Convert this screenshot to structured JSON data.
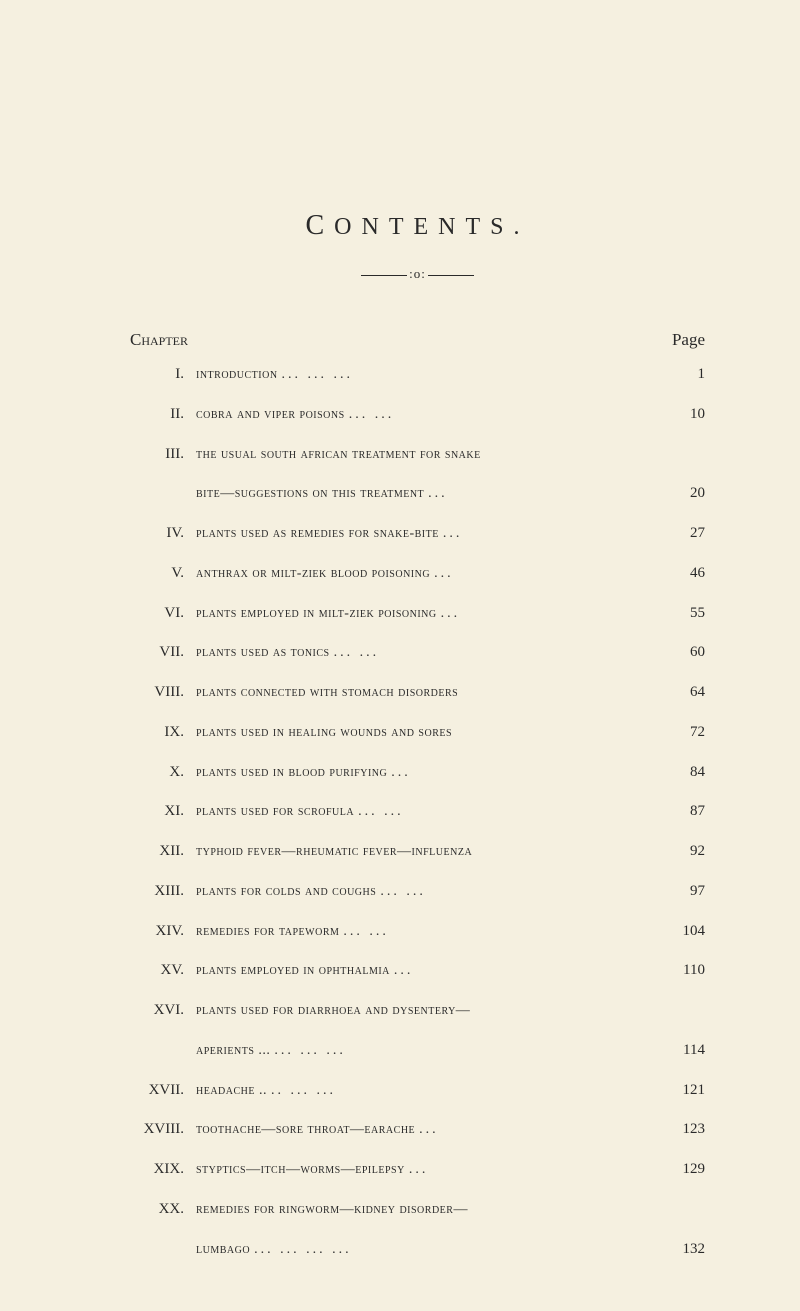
{
  "title": "ONTENTS.",
  "title_first_char": "C",
  "divider_symbol": ":o:",
  "header_left": "Chapter",
  "header_right": "Page",
  "background_color": "#f5f0e0",
  "text_color": "#2a2a2a",
  "entries": [
    {
      "roman": "I.",
      "text": "introduction",
      "dots": "...       ...       ...",
      "page": "1"
    },
    {
      "roman": "II.",
      "text": "cobra and viper poisons",
      "dots": "...       ...",
      "page": "10"
    },
    {
      "roman": "III.",
      "text": "the usual south african treatment for snake",
      "dots": "",
      "page": ""
    },
    {
      "roman": "",
      "text": "bite—suggestions on this treatment",
      "dots": "...",
      "page": "20",
      "cont": true
    },
    {
      "roman": "IV.",
      "text": "plants used as remedies for snake-bite",
      "dots": "...",
      "page": "27"
    },
    {
      "roman": "V.",
      "text": "anthrax or milt-ziek blood poisoning",
      "dots": "...",
      "page": "46"
    },
    {
      "roman": "VI.",
      "text": "plants employed in milt-ziek poisoning",
      "dots": "...",
      "page": "55"
    },
    {
      "roman": "VII.",
      "text": "plants used as tonics",
      "dots": "...       ...",
      "page": "60"
    },
    {
      "roman": "VIII.",
      "text": "plants connected with stomach disorders",
      "dots": "",
      "page": "64"
    },
    {
      "roman": "IX.",
      "text": "plants used in healing wounds and sores",
      "dots": "",
      "page": "72"
    },
    {
      "roman": "X.",
      "text": "plants used in blood purifying",
      "dots": "...",
      "page": "84"
    },
    {
      "roman": "XI.",
      "text": "plants used for scrofula",
      "dots": "...       ...",
      "page": "87"
    },
    {
      "roman": "XII.",
      "text": "typhoid fever—rheumatic fever—influenza",
      "dots": "",
      "page": "92"
    },
    {
      "roman": "XIII.",
      "text": "plants for colds and coughs",
      "dots": "...       ...",
      "page": "97"
    },
    {
      "roman": "XIV.",
      "text": "remedies for tapeworm",
      "dots": "...       ...",
      "page": "104"
    },
    {
      "roman": "XV.",
      "text": "plants employed in ophthalmia",
      "dots": "...",
      "page": "110"
    },
    {
      "roman": "XVI.",
      "text": "plants used for diarrhoea and dysentery—",
      "dots": "",
      "page": ""
    },
    {
      "roman": "",
      "text": "aperients ...",
      "dots": "...       ...       ...",
      "page": "114",
      "cont": true
    },
    {
      "roman": "XVII.",
      "text": "headache ..",
      "dots": "..       ...       ...",
      "page": "121"
    },
    {
      "roman": "XVIII.",
      "text": "toothache—sore throat—earache",
      "dots": "...",
      "page": "123"
    },
    {
      "roman": "XIX.",
      "text": "styptics—itch—worms—epilepsy",
      "dots": "...",
      "page": "129"
    },
    {
      "roman": "XX.",
      "text": "remedies for ringworm—kidney disorder—",
      "dots": "",
      "page": ""
    },
    {
      "roman": "",
      "text": "lumbago",
      "dots": "...       ...       ...       ...",
      "page": "132",
      "cont": true
    }
  ]
}
